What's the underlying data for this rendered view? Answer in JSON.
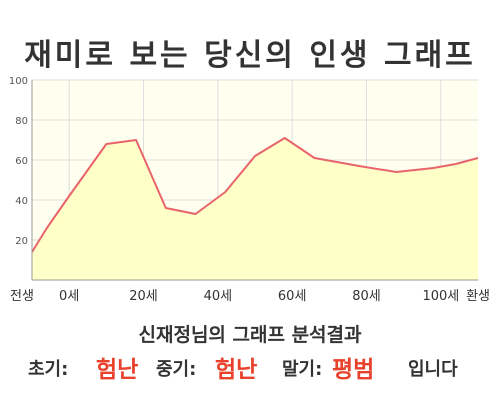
{
  "title": "재미로 보는 당신의 인생 그래프",
  "subtitle": "신재정님의 그래프 분석결과",
  "results": {
    "early_label": "초기:",
    "early_value": "험난",
    "middle_label": "중기:",
    "middle_value": "험난",
    "late_label": "말기:",
    "late_value": "평범",
    "suffix": "입니다"
  },
  "colors": {
    "line": "#e8646b",
    "fill": "#ffffc8",
    "plot_bg": "#fffff0",
    "grid": "#dedede",
    "result_accent": "#e8412c"
  },
  "chart_data": {
    "type": "area",
    "title": "",
    "xlabel": "",
    "ylabel": "",
    "ylim": [
      0,
      100
    ],
    "yticks": [
      20,
      40,
      60,
      80,
      100
    ],
    "xlim": [
      -10,
      110
    ],
    "xticks": [
      {
        "value": -10,
        "label": "전생"
      },
      {
        "value": 0,
        "label": "0세"
      },
      {
        "value": 20,
        "label": "20세"
      },
      {
        "value": 40,
        "label": "40세"
      },
      {
        "value": 60,
        "label": "60세"
      },
      {
        "value": 80,
        "label": "80세"
      },
      {
        "value": 100,
        "label": "100세"
      },
      {
        "value": 110,
        "label": "환생"
      }
    ],
    "grid": true,
    "series": [
      {
        "x": [
          -10,
          -6,
          0,
          10,
          18,
          26,
          34,
          42,
          50,
          58,
          66,
          78,
          88,
          98,
          104,
          110
        ],
        "values": [
          14,
          26,
          42,
          68,
          70,
          36,
          33,
          44,
          62,
          71,
          61,
          57,
          54,
          56,
          58,
          61
        ]
      }
    ]
  }
}
